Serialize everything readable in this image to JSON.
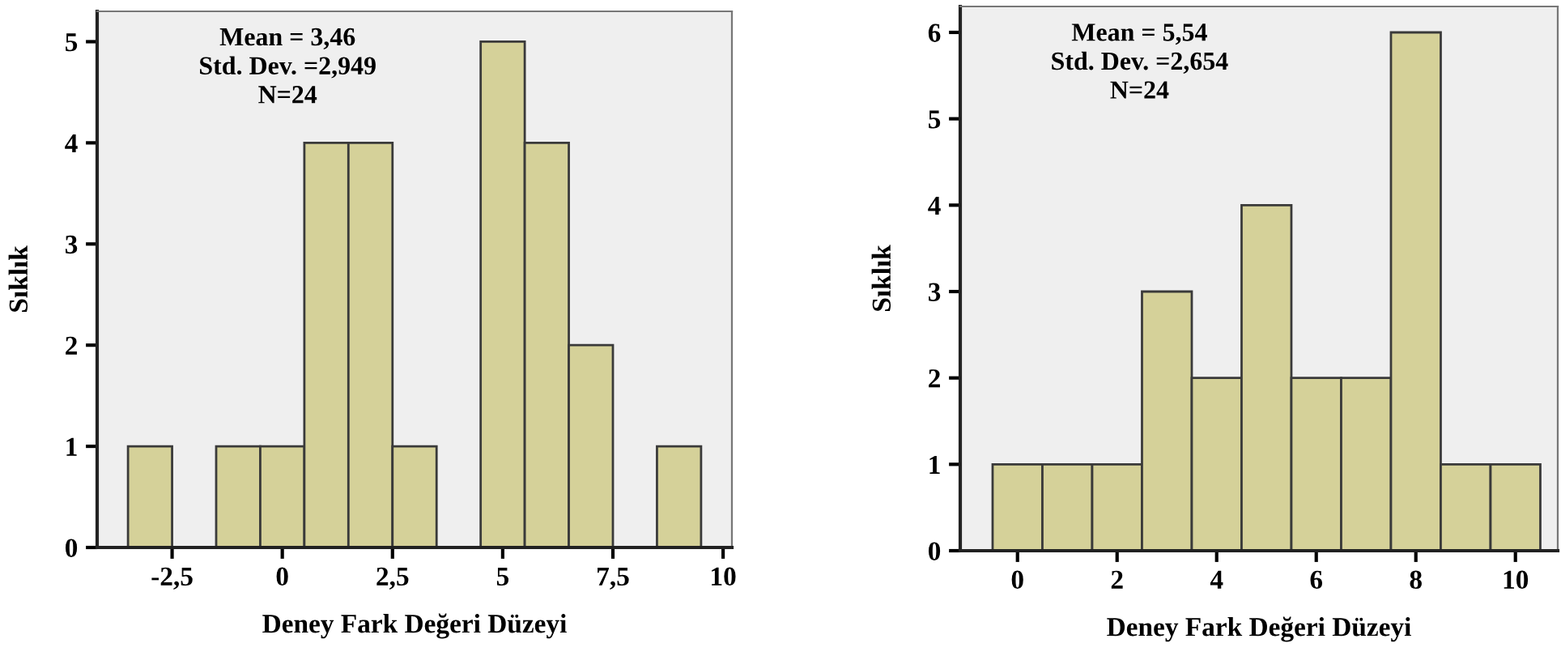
{
  "chart_data": [
    {
      "type": "histogram",
      "xlabel": "Deney Fark Değeri Düzeyi",
      "ylabel": "Sıklık",
      "annotations": [
        "Mean = 3,46\nStd. Dev. =2,949\nN=24"
      ],
      "bins": [
        -3.5,
        -2.5,
        -1.5,
        -0.5,
        0.5,
        1.5,
        2.5,
        3.5,
        4.5,
        5.5,
        6.5,
        7.5,
        8.5,
        9.5
      ],
      "values": [
        1,
        0,
        1,
        1,
        4,
        4,
        1,
        0,
        5,
        4,
        2,
        0,
        1
      ],
      "color": "#d5d199",
      "xlim": [
        -4.2,
        10.2
      ],
      "ylim": [
        0,
        5.3
      ],
      "xticks": [
        {
          "value": -2.5,
          "label": "-2,5"
        },
        0,
        {
          "value": 2.5,
          "label": "2,5"
        },
        5,
        {
          "value": 7.5,
          "label": "7,5"
        },
        10
      ],
      "yticks": [
        0,
        1,
        2,
        3,
        4,
        5
      ],
      "grid": false,
      "legend": false
    },
    {
      "type": "histogram",
      "xlabel": "Deney Fark Değeri Düzeyi",
      "ylabel": "Sıklık",
      "annotations": [
        "Mean = 5,54\nStd. Dev. =2,654\nN=24"
      ],
      "bins": [
        -0.5,
        0.5,
        1.5,
        2.5,
        3.5,
        4.5,
        5.5,
        6.5,
        7.5,
        8.5,
        9.5,
        10.5
      ],
      "values": [
        1,
        1,
        1,
        3,
        2,
        4,
        2,
        2,
        6,
        1,
        1
      ],
      "color": "#d5d199",
      "xlim": [
        -1.15,
        10.85
      ],
      "ylim": [
        0,
        6.3
      ],
      "xticks": [
        0,
        2,
        4,
        6,
        8,
        10
      ],
      "yticks": [
        0,
        1,
        2,
        3,
        4,
        5,
        6
      ],
      "grid": false,
      "legend": false
    }
  ]
}
